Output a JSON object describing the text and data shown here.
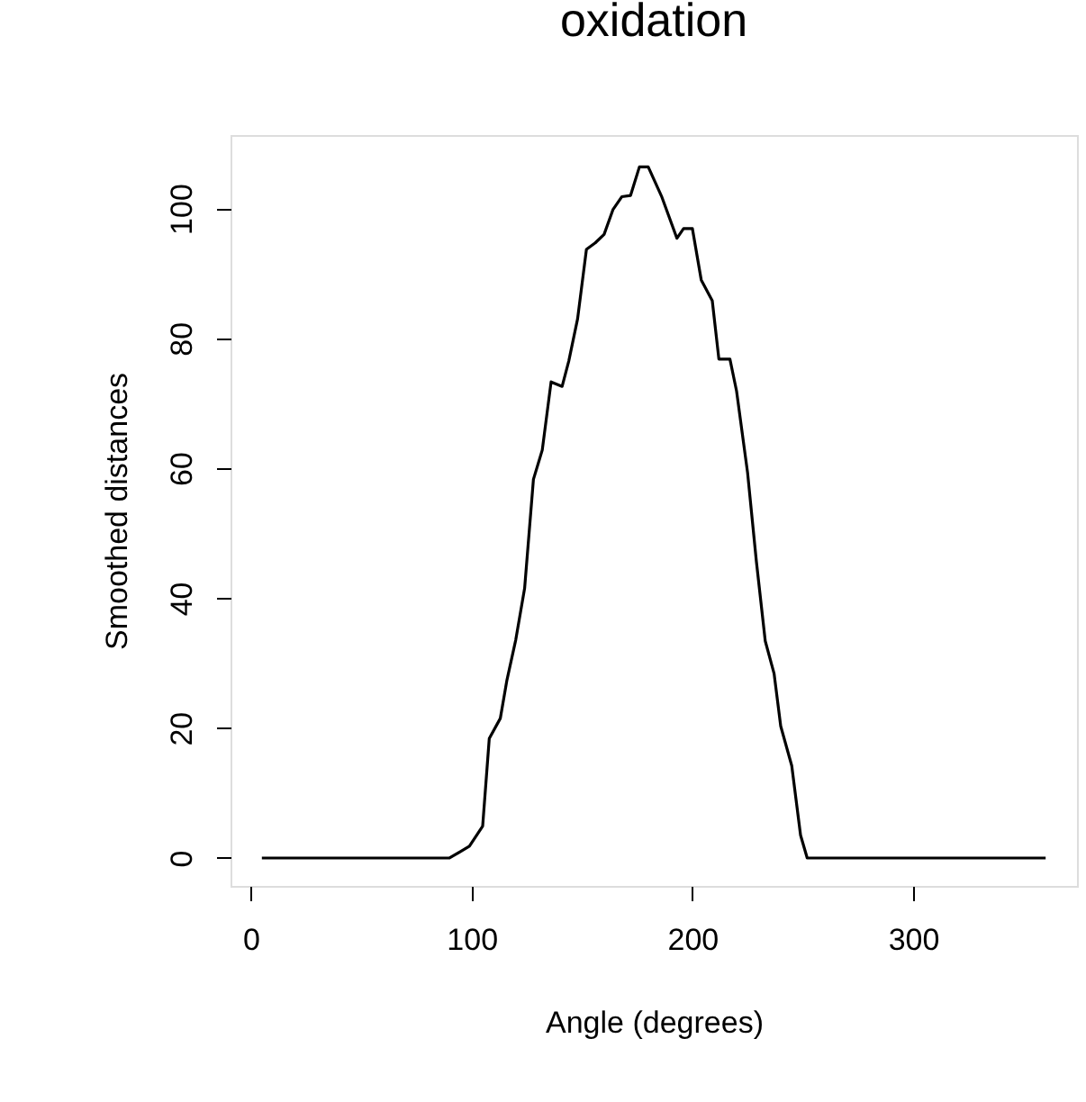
{
  "chart_data": {
    "type": "line",
    "title": "oxidation",
    "xlabel": "Angle (degrees)",
    "ylabel": "Smoothed distances",
    "x": [
      5,
      90,
      99,
      105,
      108,
      113,
      116,
      120,
      124,
      128,
      132,
      136,
      141,
      144,
      148,
      152,
      156,
      160,
      164,
      168,
      172,
      176,
      180,
      186,
      193,
      196,
      200,
      204,
      209,
      212,
      217,
      220,
      225,
      229,
      233,
      237,
      240,
      245,
      249,
      252,
      360
    ],
    "series": [
      {
        "color": "#000000",
        "values": [
          0,
          0,
          1.8,
          4.9,
          18.4,
          21.5,
          27.4,
          33.6,
          41.5,
          58.3,
          62.8,
          73.3,
          72.6,
          76.5,
          83,
          93.7,
          94.7,
          96,
          99.8,
          101.8,
          102,
          106.4,
          106.4,
          101.9,
          95.4,
          96.9,
          96.9,
          89,
          85.8,
          76.8,
          76.8,
          71.9,
          59.3,
          45.6,
          33.4,
          28.4,
          20.3,
          14.2,
          3.5,
          0,
          0
        ]
      }
    ],
    "xlim": [
      -9.2,
      374.2
    ],
    "ylim": [
      -4.3,
      111.3
    ],
    "xticks": [
      0,
      100,
      200,
      300
    ],
    "yticks": [
      0,
      20,
      40,
      60,
      80,
      100
    ],
    "grid": false,
    "marker": "none",
    "line_style": "solid"
  }
}
